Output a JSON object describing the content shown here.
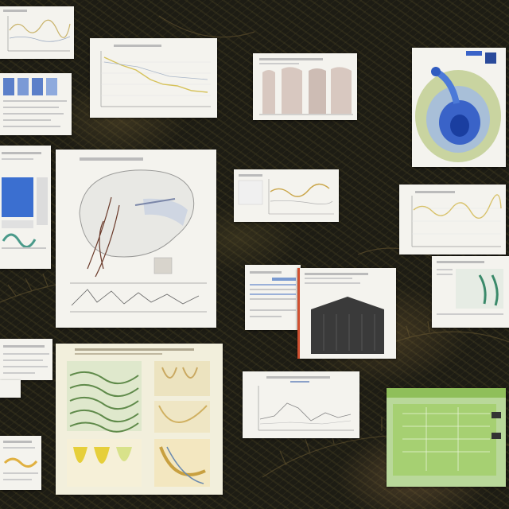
{
  "board": {
    "background_color": "#1d1c14",
    "panels": [
      {
        "id": "chart-top-left",
        "kind": "line-chart",
        "accent": "#c9b36a"
      },
      {
        "id": "blue-table",
        "kind": "table",
        "accent": "#5b7fc9"
      },
      {
        "id": "line-chart-top-center",
        "kind": "line-chart",
        "accent": "#d6c25a"
      },
      {
        "id": "bar-panel",
        "kind": "bar-chart",
        "accent": "#d8c8c0"
      },
      {
        "id": "blue-swirl",
        "kind": "illustration",
        "accent": "#3a63c8"
      },
      {
        "id": "blue-screen",
        "kind": "screen",
        "accent": "#3b6fd0"
      },
      {
        "id": "brain-diagram",
        "kind": "illustration",
        "accent": "#e6e6e6"
      },
      {
        "id": "wave-chart-mid",
        "kind": "line-chart",
        "accent": "#caa64a"
      },
      {
        "id": "wave-chart-right",
        "kind": "line-chart",
        "accent": "#d8c26a"
      },
      {
        "id": "small-chart-right",
        "kind": "diagram",
        "accent": "#3a8a6a"
      },
      {
        "id": "report-sheet",
        "kind": "table",
        "accent": "#7a9ad0"
      },
      {
        "id": "dark-building",
        "kind": "illustration",
        "accent": "#3a3a3a"
      },
      {
        "id": "botanical-poster",
        "kind": "illustration",
        "accent": "#6f9a5a"
      },
      {
        "id": "plot-bottom-mid",
        "kind": "line-chart",
        "accent": "#b0b0b0"
      },
      {
        "id": "green-screen",
        "kind": "screen",
        "accent": "#9ccf6a"
      },
      {
        "id": "small-note-left",
        "kind": "document",
        "accent": "#b0b0b0"
      },
      {
        "id": "small-card-bottom-left",
        "kind": "illustration",
        "accent": "#e0b040"
      }
    ]
  }
}
